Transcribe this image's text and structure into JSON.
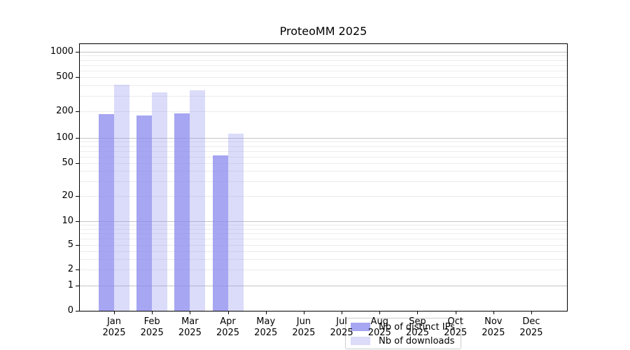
{
  "figure": {
    "background": "#ffffff"
  },
  "chart_data": {
    "type": "bar",
    "title": "ProteoMM 2025",
    "x": {
      "categories": [
        "Jan",
        "Feb",
        "Mar",
        "Apr",
        "May",
        "Jun",
        "Jul",
        "Aug",
        "Sep",
        "Oct",
        "Nov",
        "Dec"
      ],
      "sub_label": "2025"
    },
    "y": {
      "scale": "symlog",
      "ticks": [
        0,
        1,
        2,
        5,
        10,
        20,
        50,
        100,
        200,
        500,
        1000
      ],
      "range": [
        0,
        1250
      ],
      "minor_decades": [
        1,
        10,
        100
      ],
      "minor_multiples": [
        2,
        3,
        4,
        5,
        6,
        7,
        8,
        9
      ]
    },
    "series": [
      {
        "name": "Nb of distinct IPs",
        "color": "rgba(136,136,238,0.75)",
        "values": [
          185,
          178,
          190,
          62,
          0,
          0,
          0,
          0,
          0,
          0,
          0,
          0
        ]
      },
      {
        "name": "Nb of downloads",
        "color": "rgba(136,136,238,0.30)",
        "values": [
          410,
          330,
          350,
          112,
          0,
          0,
          0,
          0,
          0,
          0,
          0,
          0
        ]
      }
    ],
    "legend": {
      "position": "bottom-center"
    },
    "grid": {
      "major_color": "#c4c4c4",
      "minor_color": "#ececec"
    },
    "axis_color": "#000000",
    "text_color": "#000000"
  }
}
